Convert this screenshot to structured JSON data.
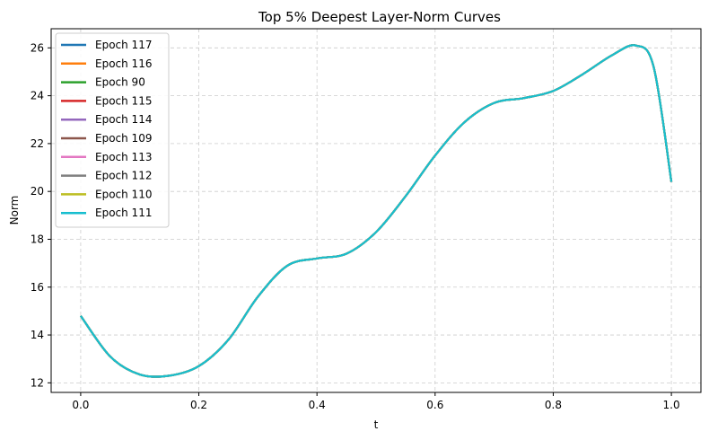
{
  "chart_data": {
    "type": "line",
    "title": "Top 5% Deepest Layer-Norm Curves",
    "xlabel": "t",
    "ylabel": "Norm",
    "xlim": [
      -0.05,
      1.05
    ],
    "ylim": [
      11.6,
      26.8
    ],
    "xticks": [
      0.0,
      0.2,
      0.4,
      0.6,
      0.8,
      1.0
    ],
    "xtick_labels": [
      "0.0",
      "0.2",
      "0.4",
      "0.6",
      "0.8",
      "1.0"
    ],
    "yticks": [
      12,
      14,
      16,
      18,
      20,
      22,
      24,
      26
    ],
    "ytick_labels": [
      "12",
      "14",
      "16",
      "18",
      "20",
      "22",
      "24",
      "26"
    ],
    "grid": true,
    "legend_position": "upper-left",
    "x": [
      0.0,
      0.05,
      0.1,
      0.15,
      0.2,
      0.25,
      0.3,
      0.35,
      0.4,
      0.45,
      0.5,
      0.55,
      0.6,
      0.65,
      0.7,
      0.75,
      0.8,
      0.85,
      0.9,
      0.94,
      0.97,
      1.0
    ],
    "series": [
      {
        "name": "Epoch 117",
        "color": "#1f77b4"
      },
      {
        "name": "Epoch 116",
        "color": "#ff7f0e"
      },
      {
        "name": "Epoch 90",
        "color": "#2ca02c"
      },
      {
        "name": "Epoch 115",
        "color": "#d62728"
      },
      {
        "name": "Epoch 114",
        "color": "#9467bd"
      },
      {
        "name": "Epoch 109",
        "color": "#8c564b"
      },
      {
        "name": "Epoch 113",
        "color": "#e377c2"
      },
      {
        "name": "Epoch 112",
        "color": "#7f7f7f"
      },
      {
        "name": "Epoch 110",
        "color": "#bcbd22"
      },
      {
        "name": "Epoch 111",
        "color": "#17becf"
      }
    ],
    "values": [
      14.8,
      13.1,
      12.35,
      12.3,
      12.7,
      13.8,
      15.6,
      16.9,
      17.2,
      17.4,
      18.3,
      19.8,
      21.5,
      22.9,
      23.7,
      23.9,
      24.2,
      24.9,
      25.7,
      26.1,
      25.2,
      20.4
    ]
  }
}
